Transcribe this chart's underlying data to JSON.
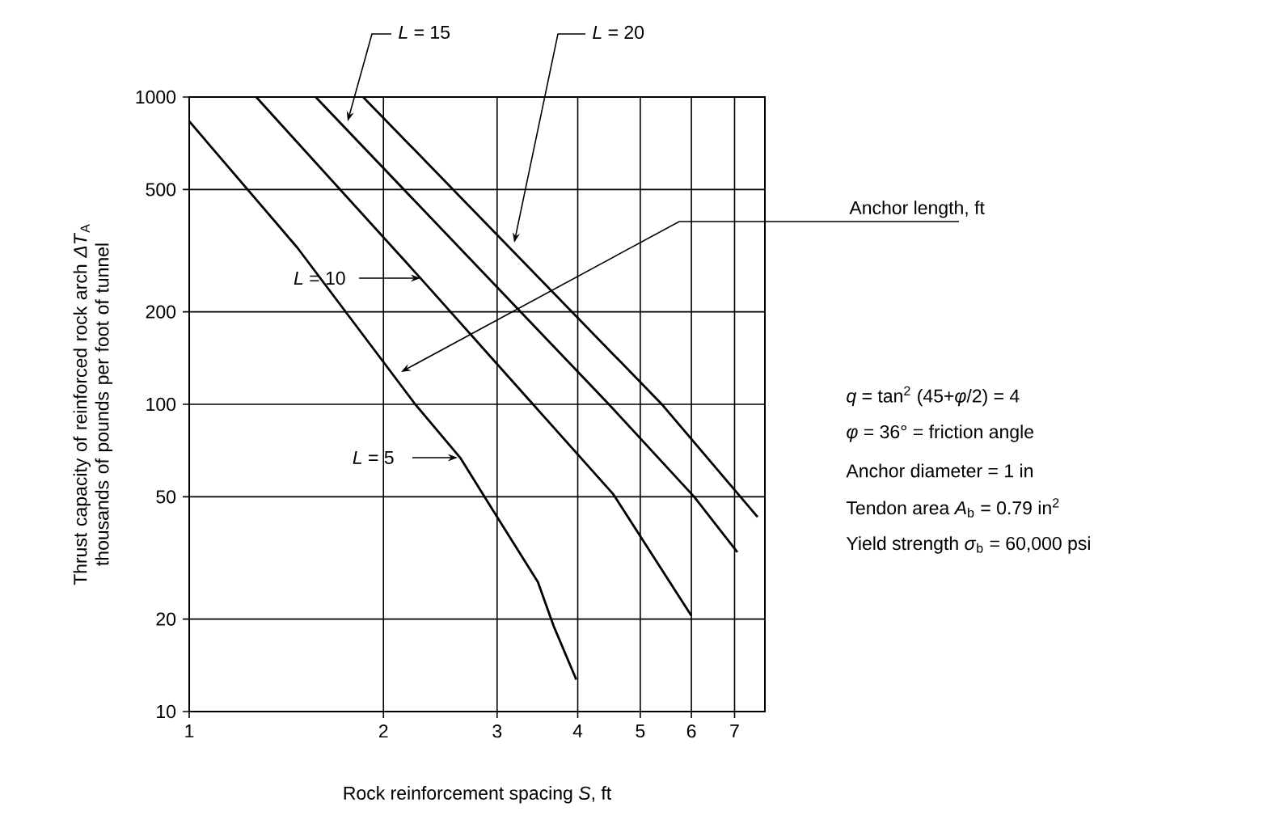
{
  "chart_data": {
    "type": "line",
    "xlabel": "Rock reinforcement spacing *S*, ft",
    "ylabel": "Thrust capacity of reinforced rock arch *ΔT*$_{A}$ thousands of pounds per foot of tunnel",
    "log": "xy",
    "grid": true,
    "legend": "left",
    "xlim": [
      1,
      7.8
    ],
    "ylim": [
      10,
      1000
    ],
    "xticks": [
      1,
      2,
      3,
      4,
      5,
      6,
      7
    ],
    "yticks": [
      10,
      20,
      50,
      100,
      200,
      500,
      1000
    ],
    "series": [
      {
        "name": "*L* = 5",
        "color": "#000000",
        "x": [
          1,
          1.47,
          2.24,
          2.63,
          2.95,
          3.47,
          3.67,
          3.98
        ],
        "values": [
          834,
          324,
          100,
          67,
          45.5,
          26.4,
          19,
          12.7
        ]
      },
      {
        "name": "*L* = 10",
        "color": "#000000",
        "x": [
          1.27,
          2.28,
          3.41,
          4.54,
          6
        ],
        "values": [
          1000,
          258,
          100,
          51,
          20.5
        ]
      },
      {
        "name": "*L* = 15",
        "color": "#000000",
        "x": [
          1.57,
          4.47,
          6.06,
          7.07
        ],
        "values": [
          1000,
          100,
          50,
          33
        ]
      },
      {
        "name": "*L* = 20",
        "color": "#000000",
        "x": [
          1.86,
          5.4,
          7.6
        ],
        "values": [
          1000,
          100,
          43
        ]
      }
    ],
    "annotations": [
      "Anchor length, ft",
      "*q* = tan$^{2}$ (45+*φ*/2) = 4",
      "*φ* = 36° = friction angle",
      "Anchor diameter = 1 in",
      "Tendon area *A*$_{b}$ = 0.79 in$^{2}$",
      "Yield strength *σ*$_{b}$ = 60,000 psi"
    ]
  }
}
